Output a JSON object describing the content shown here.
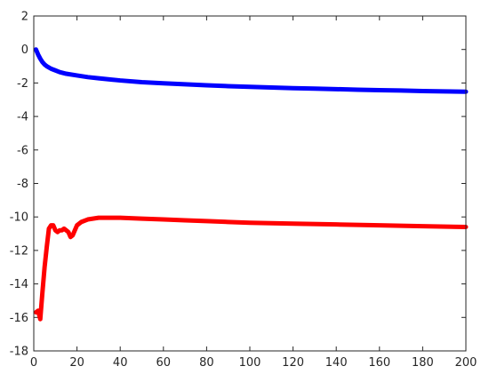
{
  "chart_data": {
    "type": "line",
    "title": "",
    "xlabel": "",
    "ylabel": "",
    "xlim": [
      0,
      200
    ],
    "ylim": [
      -18,
      2
    ],
    "xticks": [
      0,
      20,
      40,
      60,
      80,
      100,
      120,
      140,
      160,
      180,
      200
    ],
    "yticks": [
      2,
      0,
      -2,
      -4,
      -6,
      -8,
      -10,
      -12,
      -14,
      -16,
      -18
    ],
    "grid": false,
    "series": [
      {
        "color": "#0000ff",
        "x": [
          1,
          2,
          3,
          4,
          5,
          6,
          8,
          10,
          12,
          15,
          20,
          25,
          30,
          40,
          50,
          60,
          70,
          80,
          90,
          100,
          110,
          120,
          130,
          140,
          150,
          160,
          170,
          180,
          190,
          200
        ],
        "y": [
          0.0,
          -0.3,
          -0.55,
          -0.75,
          -0.9,
          -1.0,
          -1.15,
          -1.25,
          -1.35,
          -1.45,
          -1.55,
          -1.65,
          -1.72,
          -1.85,
          -1.95,
          -2.02,
          -2.08,
          -2.14,
          -2.19,
          -2.23,
          -2.27,
          -2.31,
          -2.34,
          -2.37,
          -2.4,
          -2.43,
          -2.45,
          -2.48,
          -2.5,
          -2.52
        ]
      },
      {
        "color": "#ff0000",
        "x": [
          1,
          2,
          3,
          4,
          5,
          6,
          7,
          8,
          9,
          10,
          11,
          12,
          13,
          14,
          15,
          16,
          17,
          18,
          19,
          20,
          22,
          25,
          30,
          35,
          40,
          50,
          60,
          70,
          80,
          90,
          100,
          120,
          140,
          160,
          180,
          200
        ],
        "y": [
          -15.7,
          -15.6,
          -16.1,
          -14.5,
          -13.0,
          -11.8,
          -10.7,
          -10.5,
          -10.5,
          -10.8,
          -10.9,
          -10.8,
          -10.8,
          -10.7,
          -10.8,
          -10.9,
          -11.2,
          -11.1,
          -10.8,
          -10.5,
          -10.3,
          -10.15,
          -10.05,
          -10.05,
          -10.05,
          -10.1,
          -10.15,
          -10.2,
          -10.25,
          -10.3,
          -10.35,
          -10.4,
          -10.45,
          -10.5,
          -10.55,
          -10.6
        ]
      }
    ]
  }
}
